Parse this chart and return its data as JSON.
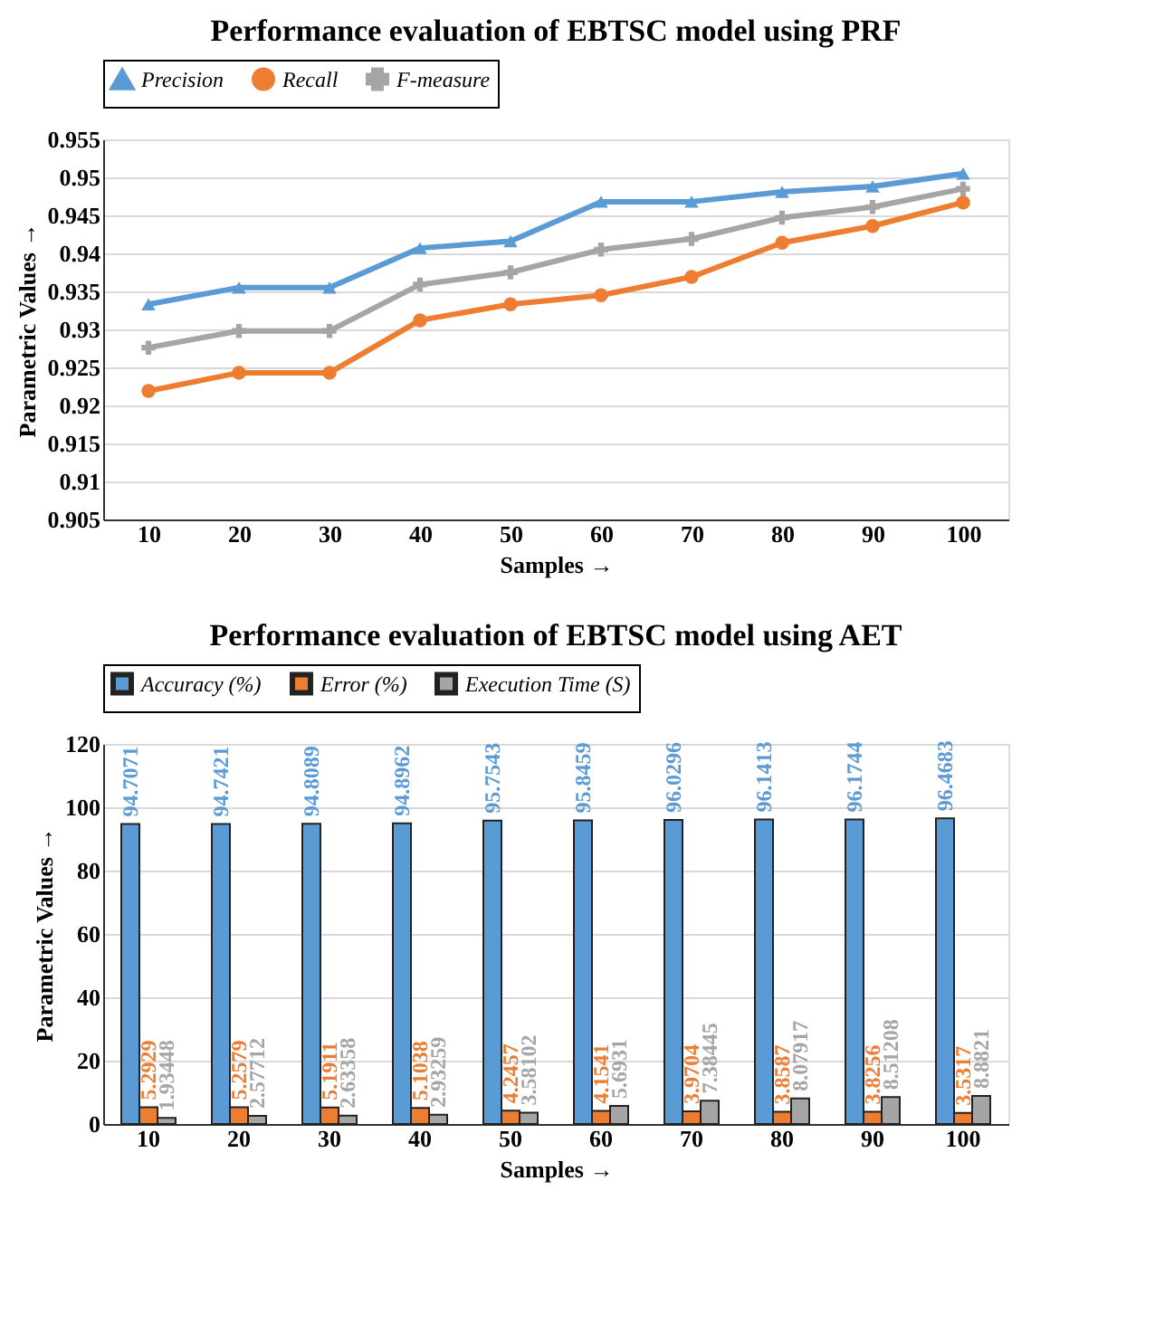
{
  "chart_data": [
    {
      "type": "line",
      "title": "Performance evaluation of EBTSC model using PRF",
      "xlabel": "Samples →",
      "ylabel": "Parametric Values →",
      "categories": [
        "10",
        "20",
        "30",
        "40",
        "50",
        "60",
        "70",
        "80",
        "90",
        "100"
      ],
      "series": [
        {
          "name": "Precision",
          "color": "#5b9bd5",
          "marker": "triangle",
          "values": [
            0.9333,
            0.9355,
            0.9355,
            0.9407,
            0.9416,
            0.9468,
            0.9468,
            0.9481,
            0.9488,
            0.9505
          ]
        },
        {
          "name": "Recall",
          "color": "#ed7d31",
          "marker": "circle",
          "values": [
            0.9219,
            0.9243,
            0.9243,
            0.9312,
            0.9333,
            0.9345,
            0.9369,
            0.9414,
            0.9436,
            0.9467
          ]
        },
        {
          "name": "F-measure",
          "color": "#a5a5a5",
          "marker": "cross",
          "values": [
            0.9276,
            0.9298,
            0.9298,
            0.9359,
            0.9375,
            0.9405,
            0.9419,
            0.9447,
            0.9461,
            0.9485
          ]
        }
      ],
      "ylim": [
        0.905,
        0.955
      ],
      "yticks": [
        0.905,
        0.91,
        0.915,
        0.92,
        0.925,
        0.93,
        0.935,
        0.94,
        0.945,
        0.95,
        0.955
      ],
      "grid": "y",
      "legend": "top"
    },
    {
      "type": "bar",
      "title": "Performance evaluation of EBTSC model using AET",
      "xlabel": "Samples →",
      "ylabel": "Parametric Values →",
      "categories": [
        "10",
        "20",
        "30",
        "40",
        "50",
        "60",
        "70",
        "80",
        "90",
        "100"
      ],
      "series": [
        {
          "name": "Accuracy (%)",
          "color": "#5b9bd5",
          "values": [
            94.7071,
            94.7421,
            94.8089,
            94.8962,
            95.7543,
            95.8459,
            96.0296,
            96.1413,
            96.1744,
            96.4683
          ]
        },
        {
          "name": "Error (%)",
          "color": "#ed7d31",
          "values": [
            5.2929,
            5.2579,
            5.1911,
            5.1038,
            4.2457,
            4.1541,
            3.9704,
            3.8587,
            3.8256,
            3.5317
          ]
        },
        {
          "name": "Execution Time (S)",
          "color": "#a5a5a5",
          "values": [
            1.93448,
            2.57712,
            2.63358,
            2.93259,
            3.58102,
            5.6931,
            7.38445,
            8.07917,
            8.51208,
            8.8821
          ]
        }
      ],
      "ylim": [
        0,
        120
      ],
      "yticks": [
        0,
        20,
        40,
        60,
        80,
        100,
        120
      ],
      "grid": "y",
      "legend": "top",
      "data_labels": true
    }
  ]
}
